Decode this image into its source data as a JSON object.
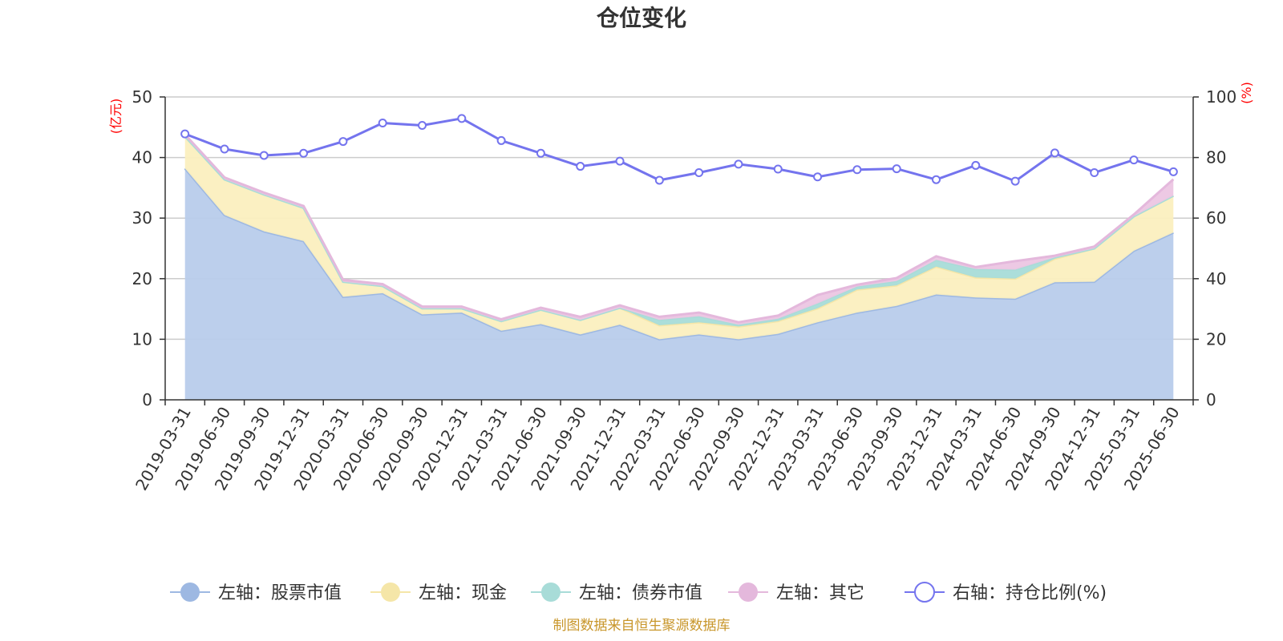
{
  "chart_data": {
    "type": "area",
    "title": "仓位变化",
    "left_axis": {
      "unit_label": "(亿元)",
      "ylim": [
        0,
        50
      ],
      "ticks": [
        0,
        10,
        20,
        30,
        40,
        50
      ]
    },
    "right_axis": {
      "unit_label": "(%)",
      "ylim": [
        0,
        100
      ],
      "ticks": [
        0,
        20,
        40,
        60,
        80,
        100
      ]
    },
    "x": [
      "2019-03-31",
      "2019-06-30",
      "2019-09-30",
      "2019-12-31",
      "2020-03-31",
      "2020-06-30",
      "2020-09-30",
      "2020-12-31",
      "2021-03-31",
      "2021-06-30",
      "2021-09-30",
      "2021-12-31",
      "2022-03-31",
      "2022-06-30",
      "2022-09-30",
      "2022-12-31",
      "2023-03-31",
      "2023-06-30",
      "2023-09-30",
      "2023-12-31",
      "2024-03-31",
      "2024-06-30",
      "2024-09-30",
      "2024-12-31",
      "2025-03-31",
      "2025-06-30"
    ],
    "grid": true,
    "legend_position": "bottom",
    "stack_series": [
      {
        "name": "左轴：股票市值",
        "color": "#9db8e2",
        "fill": "#b8cceb",
        "values": [
          38.2,
          30.5,
          27.8,
          26.2,
          17.0,
          17.6,
          14.1,
          14.4,
          11.4,
          12.5,
          10.8,
          12.4,
          10.0,
          10.8,
          10.0,
          10.9,
          12.8,
          14.4,
          15.5,
          17.4,
          16.9,
          16.7,
          19.4,
          19.5,
          24.6,
          27.6
        ]
      },
      {
        "name": "左轴：现金",
        "color": "#f5e6a8",
        "fill": "#fbefbf",
        "values": [
          5.3,
          5.9,
          6.1,
          5.5,
          2.5,
          1.2,
          1.0,
          0.7,
          1.6,
          2.4,
          2.4,
          2.8,
          2.3,
          2.0,
          2.1,
          2.1,
          2.3,
          3.8,
          3.4,
          4.6,
          3.3,
          3.3,
          3.9,
          5.5,
          5.7,
          6.1
        ]
      },
      {
        "name": "左轴：债券市值",
        "color": "#a8dcd8",
        "fill": "#a8dcd8",
        "values": [
          0,
          0,
          0,
          0,
          0,
          0,
          0,
          0,
          0,
          0,
          0,
          0,
          0.9,
          1.0,
          0.3,
          0.4,
          0.8,
          0.5,
          0.7,
          1.1,
          1.4,
          1.5,
          0.2,
          0,
          0,
          0
        ]
      },
      {
        "name": "左轴：其它",
        "color": "#e4b8dc",
        "fill": "#ecc6e3",
        "values": [
          0.3,
          0.3,
          0.3,
          0.3,
          0.3,
          0.3,
          0.3,
          0.3,
          0.3,
          0.3,
          0.5,
          0.4,
          0.5,
          0.6,
          0.4,
          0.5,
          1.4,
          0.3,
          0.5,
          0.6,
          0.3,
          1.4,
          0.3,
          0.3,
          0.3,
          2.7
        ]
      }
    ],
    "line_series": {
      "name": "右轴：持仓比例(%)",
      "color": "#7474ee",
      "values": [
        87.8,
        82.8,
        80.7,
        81.4,
        85.3,
        91.4,
        90.6,
        92.9,
        85.6,
        81.4,
        77.1,
        78.8,
        72.5,
        75.0,
        77.8,
        76.2,
        73.6,
        76.0,
        76.3,
        72.7,
        77.4,
        72.2,
        81.5,
        75.0,
        79.2,
        75.3
      ]
    }
  },
  "footer": {
    "source": "制图数据来自恒生聚源数据库"
  }
}
